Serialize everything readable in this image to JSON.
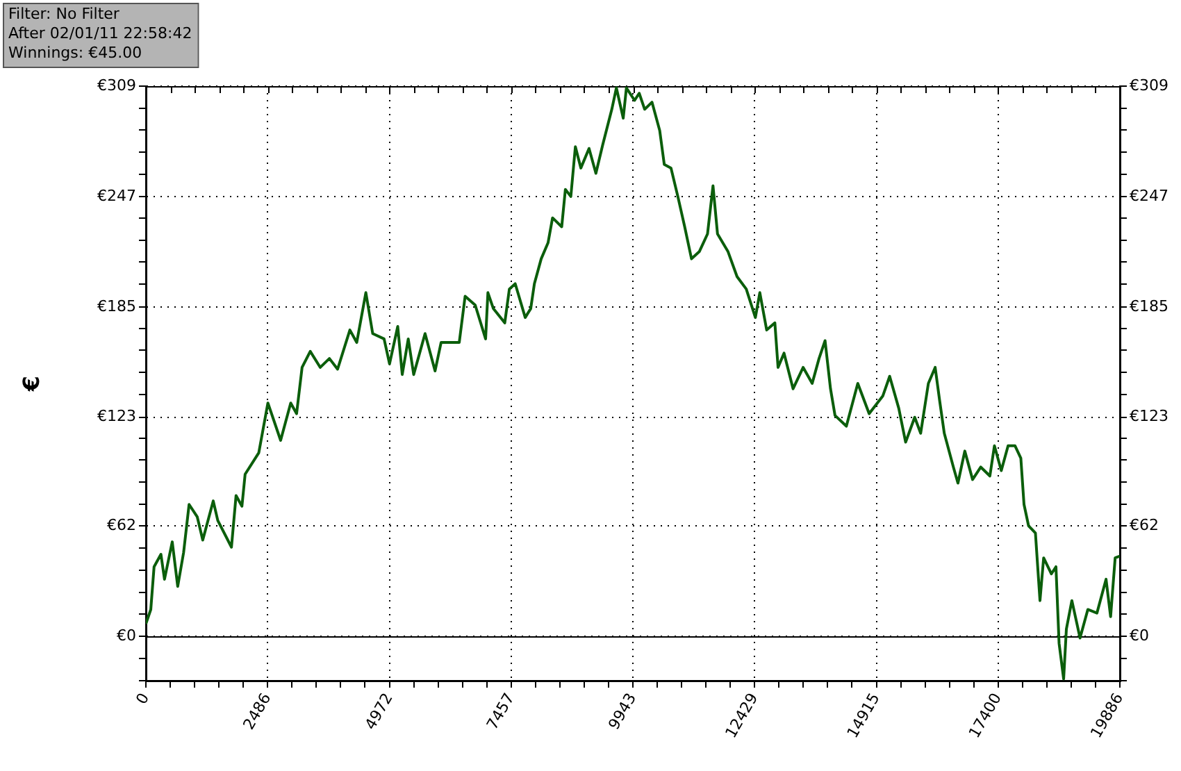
{
  "chart_data": {
    "type": "line",
    "ylabel": "€",
    "annotations": [
      "Filter: No Filter",
      "After 02/01/11 22:58:42",
      "Winnings: €45.00"
    ],
    "x": [
      0,
      100,
      167,
      307,
      380,
      538,
      650,
      770,
      882,
      1049,
      1161,
      1375,
      1468,
      1747,
      1841,
      1961,
      2026,
      2305,
      2491,
      2751,
      2957,
      3077,
      3189,
      3356,
      3560,
      3747,
      3914,
      4165,
      4305,
      4491,
      4631,
      4863,
      4975,
      5142,
      5234,
      5357,
      5468,
      5700,
      5904,
      6027,
      6398,
      6518,
      6724,
      6936,
      6983,
      7095,
      7327,
      7421,
      7541,
      7745,
      7857,
      7932,
      8071,
      8211,
      8303,
      8490,
      8565,
      8676,
      8769,
      8881,
      9048,
      9188,
      9327,
      9513,
      9606,
      9746,
      9811,
      9978,
      10072,
      10184,
      10333,
      10491,
      10584,
      10721,
      10861,
      11001,
      11140,
      11299,
      11467,
      11579,
      11671,
      11886,
      12070,
      12258,
      12444,
      12535,
      12675,
      12842,
      12907,
      13029,
      13214,
      13420,
      13604,
      13744,
      13867,
      13978,
      14070,
      14302,
      14535,
      14767,
      14907,
      15047,
      15186,
      15372,
      15512,
      15697,
      15819,
      15976,
      16115,
      16208,
      16301,
      16487,
      16580,
      16720,
      16879,
      17046,
      17232,
      17325,
      17465,
      17604,
      17744,
      17864,
      17929,
      18022,
      18162,
      18255,
      18330,
      18487,
      18581,
      18645,
      18738,
      18794,
      18906,
      19073,
      19232,
      19418,
      19604,
      19697,
      19790,
      19886
    ],
    "values": [
      7,
      15,
      39,
      46,
      32,
      53,
      28,
      47,
      74,
      67,
      54,
      76,
      65,
      50,
      79,
      73,
      91,
      103,
      131,
      110,
      131,
      125,
      151,
      160,
      151,
      156,
      150,
      172,
      165,
      193,
      170,
      167,
      153,
      174,
      147,
      167,
      147,
      170,
      149,
      165,
      165,
      191,
      186,
      167,
      193,
      184,
      176,
      195,
      198,
      179,
      184,
      198,
      212,
      221,
      235,
      230,
      251,
      247,
      275,
      263,
      274,
      260,
      276,
      296,
      308,
      291,
      308,
      301,
      305,
      296,
      300,
      284,
      265,
      263,
      247,
      230,
      212,
      216,
      226,
      253,
      226,
      216,
      202,
      195,
      179,
      193,
      172,
      176,
      151,
      159,
      139,
      151,
      142,
      156,
      166,
      139,
      124,
      118,
      142,
      125,
      130,
      135,
      146,
      128,
      109,
      123,
      114,
      142,
      151,
      132,
      114,
      95,
      86,
      104,
      88,
      95,
      90,
      107,
      93,
      107,
      107,
      100,
      74,
      62,
      58,
      20,
      44,
      35,
      39,
      -4,
      -24,
      4,
      20,
      -1,
      15,
      13,
      32,
      11,
      44,
      45
    ],
    "color": "#0b5e0b",
    "marker": "none",
    "line_style": "solid",
    "grid": true,
    "xlim": [
      0,
      19886
    ],
    "xticks": [
      0,
      {
        "value": 497,
        "label": null
      },
      {
        "value": 994,
        "label": null
      },
      {
        "value": 1491,
        "label": null
      },
      {
        "value": 1989,
        "label": null
      },
      2486,
      {
        "value": 2983,
        "label": null
      },
      {
        "value": 3480,
        "label": null
      },
      {
        "value": 3977,
        "label": null
      },
      {
        "value": 4474,
        "label": null
      },
      4972,
      {
        "value": 5469,
        "label": null
      },
      {
        "value": 5966,
        "label": null
      },
      {
        "value": 6463,
        "label": null
      },
      {
        "value": 6960,
        "label": null
      },
      7457,
      {
        "value": 7954,
        "label": null
      },
      {
        "value": 8452,
        "label": null
      },
      {
        "value": 8949,
        "label": null
      },
      {
        "value": 9446,
        "label": null
      },
      9943,
      {
        "value": 10440,
        "label": null
      },
      {
        "value": 10937,
        "label": null
      },
      {
        "value": 11434,
        "label": null
      },
      {
        "value": 11932,
        "label": null
      },
      12429,
      {
        "value": 12926,
        "label": null
      },
      {
        "value": 13423,
        "label": null
      },
      {
        "value": 13920,
        "label": null
      },
      {
        "value": 14417,
        "label": null
      },
      14915,
      {
        "value": 15412,
        "label": null
      },
      {
        "value": 15909,
        "label": null
      },
      {
        "value": 16406,
        "label": null
      },
      {
        "value": 16903,
        "label": null
      },
      17400,
      {
        "value": 17897,
        "label": null
      },
      {
        "value": 18395,
        "label": null
      },
      {
        "value": 18892,
        "label": null
      },
      {
        "value": 19389,
        "label": null
      },
      19886
    ],
    "ylim": [
      -25,
      309
    ],
    "yticks": [
      {
        "value": -25,
        "label": null
      },
      {
        "value": -12.4,
        "label": null
      },
      {
        "value": 0,
        "label": "€0"
      },
      {
        "value": 12.4,
        "label": null
      },
      {
        "value": 24.7,
        "label": null
      },
      {
        "value": 37.1,
        "label": null
      },
      {
        "value": 49.4,
        "label": null
      },
      {
        "value": 62,
        "label": "€62"
      },
      {
        "value": 74.2,
        "label": null
      },
      {
        "value": 86.5,
        "label": null
      },
      {
        "value": 98.9,
        "label": null
      },
      {
        "value": 111.2,
        "label": null
      },
      {
        "value": 123,
        "label": "€123"
      },
      {
        "value": 135.9,
        "label": null
      },
      {
        "value": 148.3,
        "label": null
      },
      {
        "value": 160.6,
        "label": null
      },
      {
        "value": 173,
        "label": null
      },
      {
        "value": 185,
        "label": "€185"
      },
      {
        "value": 197.8,
        "label": null
      },
      {
        "value": 210.1,
        "label": null
      },
      {
        "value": 222.5,
        "label": null
      },
      {
        "value": 234.8,
        "label": null
      },
      {
        "value": 247,
        "label": "€247"
      },
      {
        "value": 259.6,
        "label": null
      },
      {
        "value": 271.9,
        "label": null
      },
      {
        "value": 284.3,
        "label": null
      },
      {
        "value": 296.6,
        "label": null
      },
      {
        "value": 309,
        "label": "€309"
      }
    ],
    "y2lim": [
      -25,
      309
    ],
    "y2ticks": [
      {
        "value": -25,
        "label": null
      },
      {
        "value": -12.4,
        "label": null
      },
      {
        "value": 0,
        "label": "€0"
      },
      {
        "value": 12.4,
        "label": null
      },
      {
        "value": 24.7,
        "label": null
      },
      {
        "value": 37.1,
        "label": null
      },
      {
        "value": 49.4,
        "label": null
      },
      {
        "value": 62,
        "label": "€62"
      },
      {
        "value": 74.2,
        "label": null
      },
      {
        "value": 86.5,
        "label": null
      },
      {
        "value": 98.9,
        "label": null
      },
      {
        "value": 111.2,
        "label": null
      },
      {
        "value": 123,
        "label": "€123"
      },
      {
        "value": 135.9,
        "label": null
      },
      {
        "value": 148.3,
        "label": null
      },
      {
        "value": 160.6,
        "label": null
      },
      {
        "value": 173,
        "label": null
      },
      {
        "value": 185,
        "label": "€185"
      },
      {
        "value": 197.8,
        "label": null
      },
      {
        "value": 210.1,
        "label": null
      },
      {
        "value": 222.5,
        "label": null
      },
      {
        "value": 234.8,
        "label": null
      },
      {
        "value": 247,
        "label": "€247"
      },
      {
        "value": 259.6,
        "label": null
      },
      {
        "value": 271.9,
        "label": null
      },
      {
        "value": 284.3,
        "label": null
      },
      {
        "value": 296.6,
        "label": null
      },
      {
        "value": 309,
        "label": "€309"
      }
    ],
    "ref_lines": [
      {
        "axis": "y",
        "value": 0,
        "color": "#000000"
      }
    ]
  }
}
